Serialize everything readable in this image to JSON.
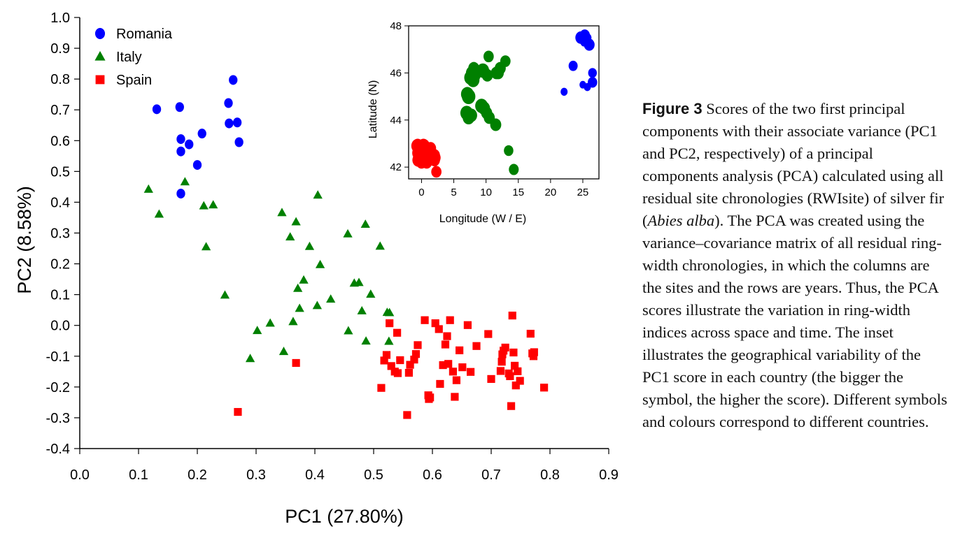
{
  "chart_data": [
    {
      "type": "scatter",
      "xlabel": "PC1 (27.80%)",
      "ylabel": "PC2 (8.58%)",
      "xlim": [
        0.0,
        0.9
      ],
      "ylim": [
        -0.4,
        1.0
      ],
      "xticks": [
        "0.0",
        "0.1",
        "0.2",
        "0.3",
        "0.4",
        "0.5",
        "0.6",
        "0.7",
        "0.8",
        "0.9"
      ],
      "yticks": [
        "-0.4",
        "-0.3",
        "-0.2",
        "-0.1",
        "0.0",
        "0.1",
        "0.2",
        "0.3",
        "0.4",
        "0.5",
        "0.6",
        "0.7",
        "0.8",
        "0.9",
        "1.0"
      ],
      "legend_position": "top-left",
      "grid": false,
      "series": [
        {
          "name": "Romania",
          "color": "#0000ff",
          "marker": "circle",
          "x": [
            0.131,
            0.17,
            0.172,
            0.172,
            0.172,
            0.186,
            0.2,
            0.208,
            0.253,
            0.254,
            0.261,
            0.268,
            0.271
          ],
          "y": [
            0.702,
            0.709,
            0.605,
            0.565,
            0.428,
            0.588,
            0.521,
            0.623,
            0.722,
            0.656,
            0.797,
            0.659,
            0.595
          ]
        },
        {
          "name": "Italy",
          "color": "#008000",
          "marker": "triangle",
          "x": [
            0.117,
            0.135,
            0.179,
            0.211,
            0.215,
            0.227,
            0.247,
            0.29,
            0.302,
            0.324,
            0.344,
            0.347,
            0.358,
            0.363,
            0.368,
            0.371,
            0.374,
            0.381,
            0.391,
            0.404,
            0.405,
            0.409,
            0.427,
            0.456,
            0.457,
            0.467,
            0.475,
            0.48,
            0.486,
            0.487,
            0.495,
            0.511,
            0.523,
            0.526,
            0.527
          ],
          "y": [
            0.442,
            0.361,
            0.466,
            0.388,
            0.255,
            0.391,
            0.098,
            -0.108,
            -0.017,
            0.007,
            0.366,
            -0.085,
            0.287,
            0.012,
            0.336,
            0.12,
            0.055,
            0.147,
            0.256,
            0.064,
            0.423,
            0.197,
            0.085,
            0.297,
            -0.018,
            0.137,
            0.139,
            0.047,
            0.328,
            -0.051,
            0.101,
            0.257,
            0.042,
            -0.052,
            0.041
          ]
        },
        {
          "name": "Spain",
          "color": "#ff0000",
          "marker": "square",
          "x": [
            0.269,
            0.368,
            0.513,
            0.518,
            0.522,
            0.527,
            0.53,
            0.536,
            0.54,
            0.541,
            0.545,
            0.557,
            0.56,
            0.562,
            0.569,
            0.572,
            0.575,
            0.587,
            0.593,
            0.594,
            0.596,
            0.605,
            0.611,
            0.613,
            0.618,
            0.622,
            0.625,
            0.627,
            0.63,
            0.635,
            0.638,
            0.641,
            0.646,
            0.651,
            0.66,
            0.665,
            0.675,
            0.695,
            0.7,
            0.716,
            0.718,
            0.719,
            0.721,
            0.724,
            0.73,
            0.732,
            0.734,
            0.736,
            0.738,
            0.74,
            0.742,
            0.745,
            0.749,
            0.767,
            0.77,
            0.772,
            0.773,
            0.79
          ],
          "y": [
            -0.281,
            -0.122,
            -0.203,
            -0.114,
            -0.096,
            0.007,
            -0.132,
            -0.15,
            -0.024,
            -0.155,
            -0.113,
            -0.291,
            -0.154,
            -0.128,
            -0.111,
            -0.093,
            -0.064,
            0.017,
            -0.227,
            -0.239,
            -0.234,
            0.007,
            -0.012,
            -0.19,
            -0.129,
            -0.062,
            -0.035,
            -0.125,
            0.017,
            -0.15,
            -0.232,
            -0.178,
            -0.081,
            -0.136,
            0.001,
            -0.151,
            -0.067,
            -0.028,
            -0.174,
            -0.148,
            -0.118,
            -0.094,
            -0.082,
            -0.072,
            -0.156,
            -0.165,
            -0.262,
            0.032,
            -0.088,
            -0.131,
            -0.195,
            -0.149,
            -0.18,
            -0.027,
            -0.091,
            -0.1,
            -0.087,
            -0.202
          ]
        }
      ]
    },
    {
      "type": "scatter",
      "xlabel": "Longitude (W / E)",
      "ylabel": "Latitude (N)",
      "xlim": [
        -2,
        27.5
      ],
      "ylim": [
        41.5,
        48
      ],
      "xticks": [
        "0",
        "5",
        "10",
        "15",
        "20",
        "25"
      ],
      "yticks": [
        "42",
        "44",
        "46",
        "48"
      ],
      "series": [
        {
          "name": "Romania",
          "color": "#0000ff",
          "marker": "circle",
          "x": [
            24.7,
            25.3,
            25.2,
            25.8,
            25.6,
            26.0,
            26.5,
            23.5,
            22.1,
            26.5,
            25.7,
            25.0
          ],
          "y": [
            47.5,
            47.6,
            47.3,
            47.5,
            47.3,
            47.2,
            46.0,
            46.3,
            45.2,
            45.6,
            45.4,
            45.5
          ],
          "size": [
            1.0,
            0.9,
            0.55,
            0.5,
            0.45,
            0.95,
            0.7,
            0.75,
            0.5,
            0.8,
            0.5,
            0.45
          ]
        },
        {
          "name": "Italy",
          "color": "#008000",
          "marker": "circle",
          "x": [
            7.3,
            7.6,
            7.8,
            8.0,
            8.1,
            8.3,
            9.5,
            10.2,
            10.4,
            11.6,
            11.9,
            12.2,
            13.0,
            7.0,
            7.3,
            7.7,
            9.3,
            9.7,
            10.1,
            10.5,
            11.5,
            13.5,
            14.3,
            7.1
          ],
          "y": [
            45.0,
            45.8,
            46.0,
            45.7,
            46.2,
            45.9,
            46.1,
            45.9,
            46.7,
            46.0,
            46.0,
            46.2,
            46.5,
            44.3,
            44.1,
            44.2,
            44.6,
            44.5,
            44.3,
            44.1,
            43.8,
            42.7,
            41.9,
            45.1
          ],
          "size": [
            1.3,
            1.2,
            1.1,
            1.2,
            1.0,
            1.0,
            1.2,
            1.0,
            0.9,
            1.0,
            1.0,
            1.0,
            0.9,
            1.2,
            1.1,
            1.1,
            1.2,
            1.1,
            1.0,
            1.0,
            1.0,
            0.8,
            0.85,
            1.2
          ]
        },
        {
          "name": "Spain",
          "color": "#ff0000",
          "marker": "circle",
          "x": [
            -0.6,
            -0.4,
            -0.2,
            0.1,
            0.4,
            0.7,
            1.1,
            1.4,
            1.7,
            2.0,
            2.3,
            -0.5,
            0.0,
            0.5,
            1.0,
            1.5,
            2.0,
            0.3,
            -0.2,
            0.8,
            1.2,
            2.1
          ],
          "y": [
            42.9,
            42.6,
            42.8,
            42.4,
            42.6,
            42.7,
            42.5,
            42.8,
            42.4,
            42.5,
            41.8,
            42.3,
            42.2,
            42.4,
            42.3,
            42.6,
            42.3,
            42.9,
            42.5,
            42.2,
            42.6,
            42.4
          ],
          "size": [
            1.2,
            1.3,
            1.1,
            1.1,
            1.0,
            1.0,
            1.1,
            1.0,
            1.0,
            1.0,
            0.9,
            1.1,
            1.0,
            1.1,
            1.0,
            1.0,
            1.0,
            1.2,
            1.2,
            1.0,
            1.0,
            1.0
          ]
        }
      ]
    }
  ],
  "caption": {
    "figure_label": "Figure 3",
    "text_1": " Scores of the two first principal components with their associate variance (PC1 and PC2, respectively) of a principal components analysis (PCA) calculated using all residual site chronologies (RWIsite) of silver fir (",
    "species": "Abies alba",
    "text_2": "). The PCA was created using the variance–covariance matrix of all residual ring-width chronologies, in which the columns are the sites and the rows are years. Thus, the PCA scores illustrate the variation in ring-width indices across space and time. The inset illustrates the geographical variability of the PC1 score in each country (the bigger the symbol, the higher the score). Different symbols and colours correspond to different countries."
  }
}
